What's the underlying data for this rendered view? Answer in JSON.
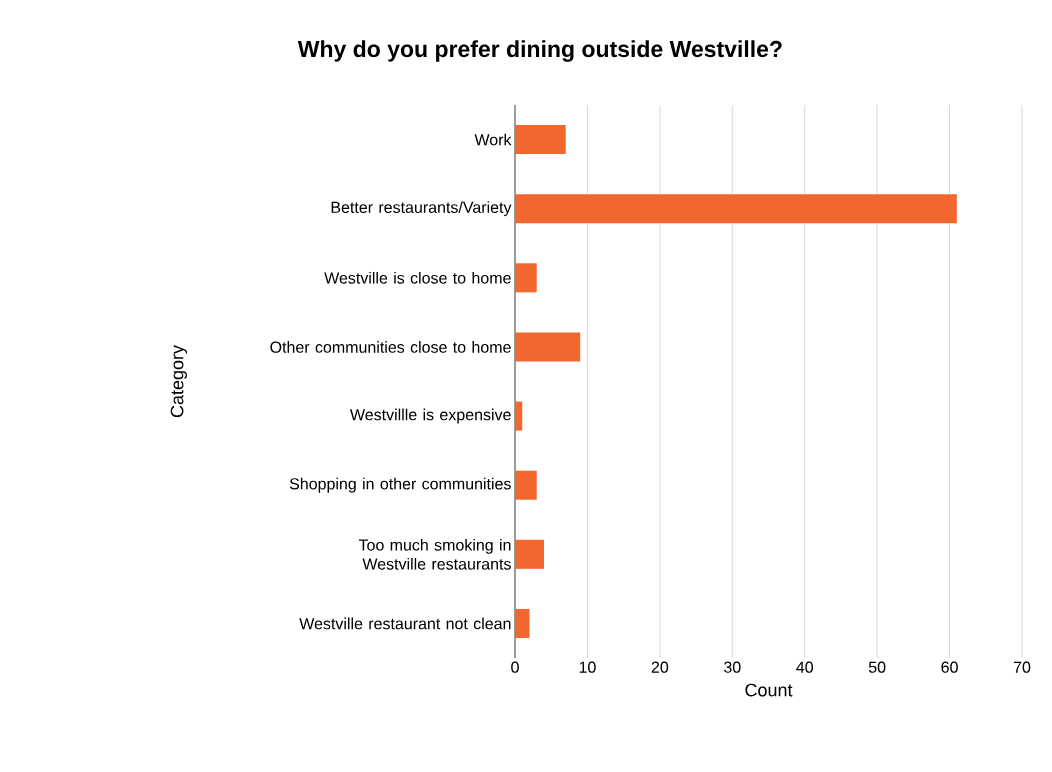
{
  "chart_data": {
    "type": "bar",
    "orientation": "horizontal",
    "title": "Why do you prefer dining outside Westville?",
    "xlabel": "Count",
    "ylabel": "Category",
    "categories": [
      "Work",
      "Better restaurants/Variety",
      "Westville is close to home",
      "Other communities close to home",
      "Westvillle is expensive",
      "Shopping in other communities",
      "Too much smoking in Westville restaurants",
      "Westville restaurant not clean"
    ],
    "values": [
      7,
      61,
      3,
      9,
      1,
      3,
      4,
      2
    ],
    "color": "#f26630",
    "xlim": [
      0,
      70
    ],
    "xticks": [
      0,
      10,
      20,
      30,
      40,
      50,
      60,
      70
    ],
    "grid": "x"
  }
}
